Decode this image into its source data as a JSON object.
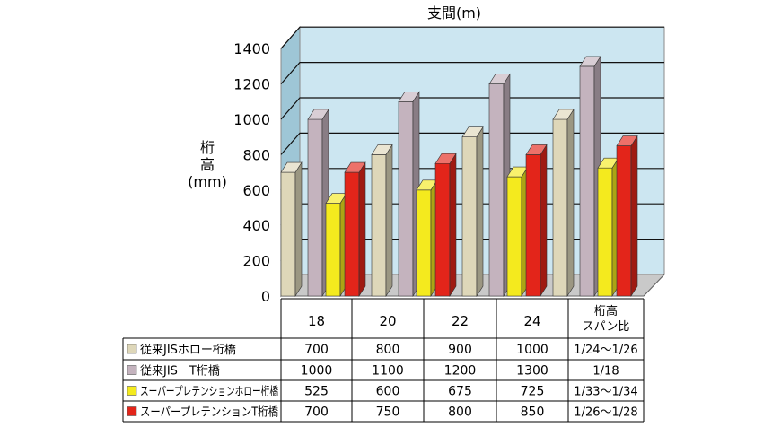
{
  "chart_data": {
    "type": "bar",
    "title": "支間(m)",
    "ylabel": [
      "桁",
      "高",
      "(mm)"
    ],
    "ylim": [
      0,
      1400
    ],
    "yticks": [
      0,
      200,
      400,
      600,
      800,
      1000,
      1200,
      1400
    ],
    "grid": true,
    "categories": [
      "18",
      "20",
      "22",
      "24"
    ],
    "ratio_header": [
      "桁高",
      "スパン比"
    ],
    "series": [
      {
        "name": "従来JISホロー桁橋",
        "values": [
          700,
          800,
          900,
          1000
        ],
        "ratio": "1/24～1/26",
        "color": "#ded7b9"
      },
      {
        "name": "従来JIS　T桁橋",
        "values": [
          1000,
          1100,
          1200,
          1300
        ],
        "ratio": "1/18",
        "color": "#c4b3be"
      },
      {
        "name": "スーパープレテンションホロー桁橋",
        "values": [
          525,
          600,
          675,
          725
        ],
        "ratio": "1/33～1/34",
        "color": "#f4ea1e"
      },
      {
        "name": "スーパープレテンションT桁橋",
        "values": [
          700,
          750,
          800,
          850
        ],
        "ratio": "1/26～1/28",
        "color": "#e3251a"
      }
    ]
  }
}
